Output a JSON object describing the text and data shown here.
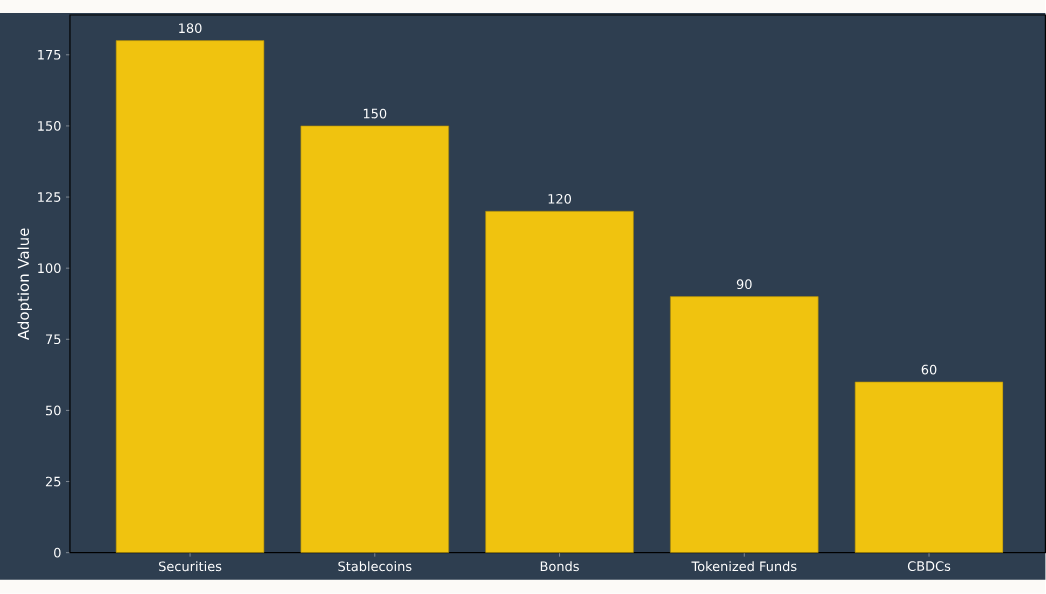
{
  "chart_data": {
    "type": "bar",
    "ylabel": "Adoption Value",
    "categories": [
      "Securities",
      "Stablecoins",
      "Bonds",
      "Tokenized Funds",
      "CBDCs"
    ],
    "values": [
      180,
      150,
      120,
      90,
      60
    ],
    "color": "#f0c30f",
    "data_labels": true,
    "ylim": [
      0,
      189
    ],
    "yticks": [
      0,
      25,
      50,
      75,
      100,
      125,
      150,
      175
    ],
    "grid": false
  }
}
